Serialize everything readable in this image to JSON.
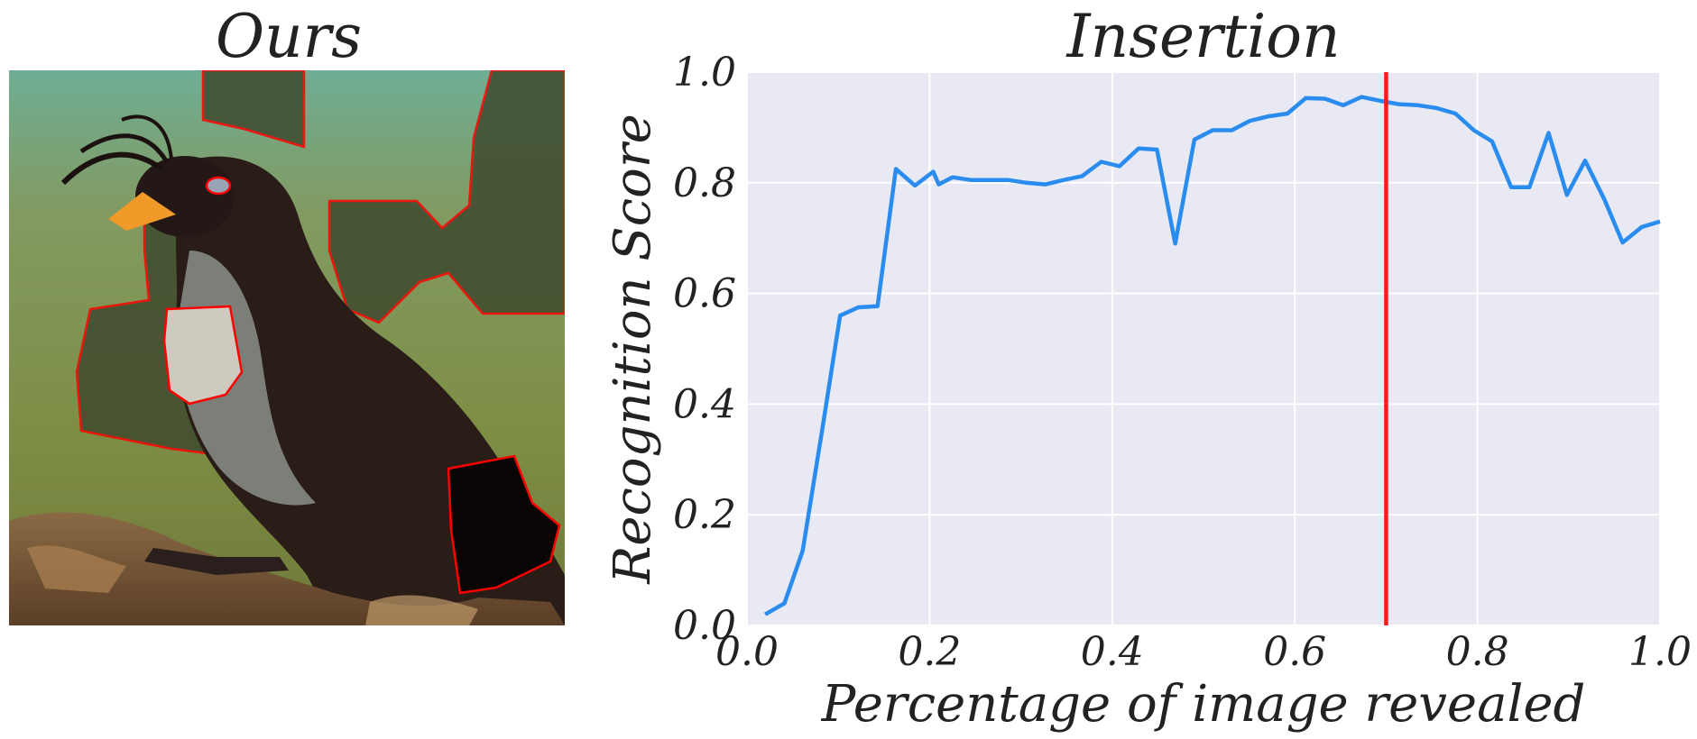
{
  "left_panel": {
    "title": "Ours"
  },
  "chart_data": {
    "type": "line",
    "title": "Insertion",
    "xlabel": "Percentage of image revealed",
    "ylabel": "Recognition Score",
    "xlim": [
      0.0,
      1.0
    ],
    "ylim": [
      0.0,
      1.0
    ],
    "xticks": [
      "0.0",
      "0.2",
      "0.4",
      "0.6",
      "0.8",
      "1.0"
    ],
    "yticks": [
      "0.0",
      "0.2",
      "0.4",
      "0.6",
      "0.8",
      "1.0"
    ],
    "grid": true,
    "line_color": "#2b8cf0",
    "marker_line": {
      "x": 0.7,
      "color": "#ff1a1a"
    },
    "series": [
      {
        "x": [
          0.02,
          0.041,
          0.061,
          0.082,
          0.102,
          0.122,
          0.143,
          0.163,
          0.184,
          0.204,
          0.21,
          0.225,
          0.245,
          0.265,
          0.286,
          0.306,
          0.327,
          0.347,
          0.367,
          0.388,
          0.408,
          0.429,
          0.449,
          0.469,
          0.49,
          0.51,
          0.531,
          0.551,
          0.571,
          0.592,
          0.612,
          0.633,
          0.653,
          0.673,
          0.694,
          0.714,
          0.735,
          0.755,
          0.776,
          0.796,
          0.816,
          0.837,
          0.857,
          0.878,
          0.898,
          0.918,
          0.939,
          0.959,
          0.98,
          1.0
        ],
        "y": [
          0.02,
          0.04,
          0.135,
          0.35,
          0.56,
          0.575,
          0.577,
          0.825,
          0.795,
          0.82,
          0.797,
          0.81,
          0.805,
          0.805,
          0.805,
          0.8,
          0.797,
          0.805,
          0.812,
          0.838,
          0.83,
          0.862,
          0.86,
          0.69,
          0.878,
          0.895,
          0.895,
          0.912,
          0.92,
          0.925,
          0.953,
          0.952,
          0.94,
          0.955,
          0.948,
          0.942,
          0.94,
          0.935,
          0.925,
          0.895,
          0.875,
          0.792,
          0.792,
          0.89,
          0.778,
          0.84,
          0.77,
          0.692,
          0.72,
          0.73
        ]
      }
    ]
  }
}
